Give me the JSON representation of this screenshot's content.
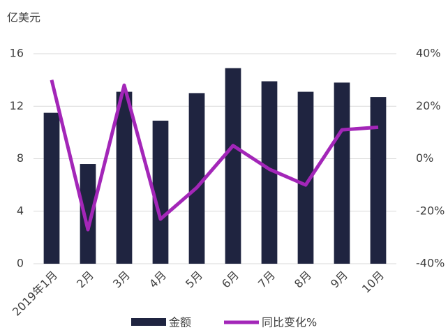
{
  "chart_data": {
    "type": "bar_line",
    "y_unit_label": "亿美元",
    "categories": [
      "2019年1月",
      "2月",
      "3月",
      "4月",
      "5月",
      "6月",
      "7月",
      "8月",
      "9月",
      "10月"
    ],
    "series": [
      {
        "name": "金额",
        "type": "bar",
        "color": "#1f2440",
        "values": [
          11.5,
          7.6,
          13.1,
          10.9,
          13.0,
          14.9,
          13.9,
          13.1,
          13.8,
          12.7
        ]
      },
      {
        "name": "同比变化%",
        "type": "line",
        "axis": "y2",
        "color": "#a326b8",
        "values": [
          30,
          -27,
          28,
          -23,
          -11,
          5,
          -4,
          -10,
          11,
          12
        ]
      }
    ],
    "ylim": [
      0,
      16
    ],
    "yticks": [
      0,
      4,
      8,
      12,
      16
    ],
    "y2lim": [
      -40,
      40
    ],
    "y2ticks": [
      {
        "value": -40,
        "label": "-40%"
      },
      {
        "value": -20,
        "label": "-20%"
      },
      {
        "value": 0,
        "label": "0%"
      },
      {
        "value": 20,
        "label": "20%"
      },
      {
        "value": 40,
        "label": "40%"
      }
    ],
    "grid": true,
    "legend": "bottom"
  }
}
